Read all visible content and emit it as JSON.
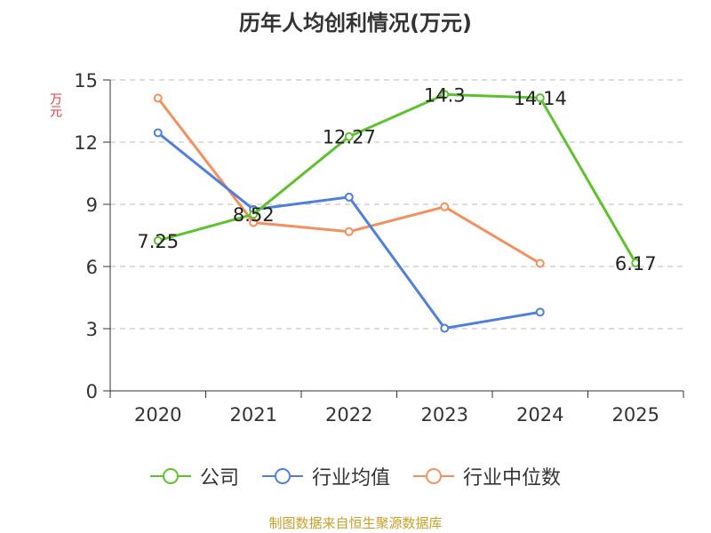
{
  "title": "历年人均创利情况(万元)",
  "unit_label": "万元",
  "source": "制图数据来自恒生聚源数据库",
  "chart_data": {
    "type": "line",
    "categories": [
      "2020",
      "2021",
      "2022",
      "2023",
      "2024",
      "2025"
    ],
    "ylim": [
      0,
      15
    ],
    "yticks": [
      0,
      3,
      6,
      9,
      12,
      15
    ],
    "ylabel": "万元",
    "grid": "horizontal-dashed",
    "legend_position": "bottom",
    "series": [
      {
        "name": "公司",
        "color": "#5ec22e",
        "values": [
          7.25,
          8.52,
          12.27,
          14.3,
          14.14,
          6.17
        ],
        "labels": [
          "7.25",
          "8.52",
          "12.27",
          "14.3",
          "14.14",
          "6.17"
        ]
      },
      {
        "name": "行业均值",
        "color": "#4f7fdc",
        "values": [
          12.45,
          8.75,
          9.35,
          3.02,
          3.8,
          null
        ]
      },
      {
        "name": "行业中位数",
        "color": "#f58f5b",
        "values": [
          14.12,
          8.12,
          7.68,
          8.88,
          6.15,
          null
        ]
      }
    ]
  }
}
